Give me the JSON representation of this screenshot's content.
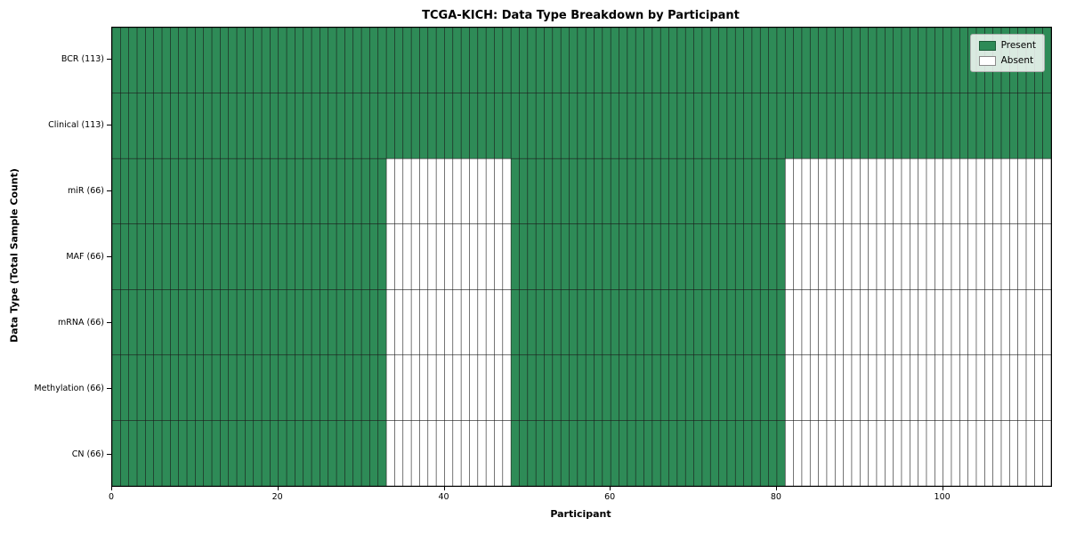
{
  "chart_data": {
    "type": "heatmap",
    "title": "TCGA-KICH: Data Type Breakdown by Participant",
    "xlabel": "Participant",
    "ylabel": "Data Type (Total Sample Count)",
    "n_participants": 113,
    "x_ticks": [
      0,
      20,
      40,
      60,
      80,
      100
    ],
    "colors": {
      "present": "#2e8b57",
      "absent": "#ffffff",
      "grid": "#1a1a1a"
    },
    "legend": [
      {
        "label": "Present",
        "color": "#2e8b57"
      },
      {
        "label": "Absent",
        "color": "#ffffff"
      }
    ],
    "rows": [
      {
        "label": "BCR (113)",
        "count": 113,
        "present_ranges": [
          [
            0,
            112
          ]
        ]
      },
      {
        "label": "Clinical (113)",
        "count": 113,
        "present_ranges": [
          [
            0,
            112
          ]
        ]
      },
      {
        "label": "miR (66)",
        "count": 66,
        "present_ranges": [
          [
            0,
            32
          ],
          [
            48,
            80
          ]
        ]
      },
      {
        "label": "MAF (66)",
        "count": 66,
        "present_ranges": [
          [
            0,
            32
          ],
          [
            48,
            80
          ]
        ]
      },
      {
        "label": "mRNA (66)",
        "count": 66,
        "present_ranges": [
          [
            0,
            32
          ],
          [
            48,
            80
          ]
        ]
      },
      {
        "label": "Methylation (66)",
        "count": 66,
        "present_ranges": [
          [
            0,
            32
          ],
          [
            48,
            80
          ]
        ]
      },
      {
        "label": "CN (66)",
        "count": 66,
        "present_ranges": [
          [
            0,
            32
          ],
          [
            48,
            80
          ]
        ]
      }
    ]
  }
}
